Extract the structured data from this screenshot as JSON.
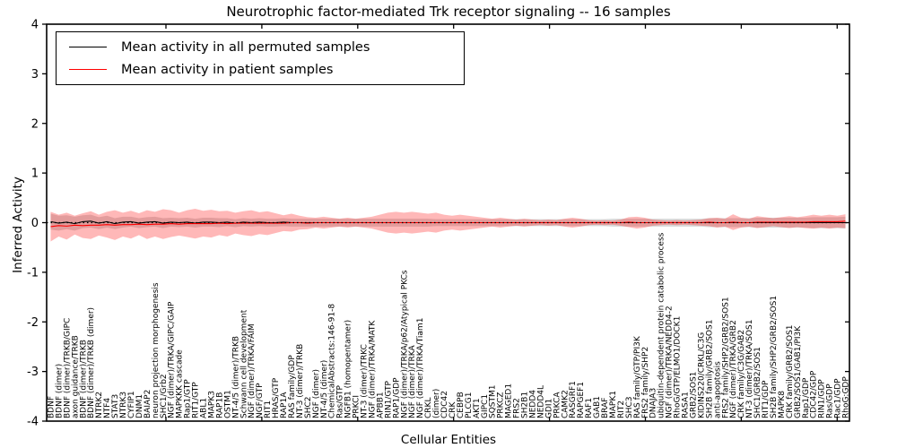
{
  "title": "Neurotrophic factor-mediated Trk receptor signaling -- 16 samples",
  "axes": {
    "xlabel": "Cellular Entities",
    "ylabel": "Inferred Activity",
    "ymin": -4,
    "ymax": 4,
    "yticks": [
      -4,
      -3,
      -2,
      -1,
      0,
      1,
      2,
      3,
      4
    ]
  },
  "legend": {
    "items": [
      {
        "label": "Mean activity in all permuted samples",
        "color": "#000000"
      },
      {
        "label": "Mean activity in patient samples",
        "color": "#ff0000"
      }
    ]
  },
  "colors": {
    "patient_line": "#ff0000",
    "permuted_line": "#000000",
    "patient_band_fill": "#ff0000",
    "patient_band_opacity": 0.28,
    "permuted_band_fill": "#999999",
    "permuted_band_opacity": 0.38,
    "zero_line": "#000000",
    "frame": "#000000"
  },
  "chart_data": {
    "type": "line",
    "title": "Neurotrophic factor-mediated Trk receptor signaling -- 16 samples",
    "xlabel": "Cellular Entities",
    "ylabel": "Inferred Activity",
    "ylim": [
      -4,
      4
    ],
    "grid": false,
    "legend_position": "upper left",
    "zero_line": {
      "style": "dotted",
      "color": "#000000",
      "y": 0
    },
    "x_categories": [
      "BDNF",
      "BDNF (dimer)",
      "BDNF (dimer)/TRKB/GIPC",
      "axon guidance/TRKB",
      "BDNF (dimer)/TRKB",
      "BDNF (dimer)/TRKB (dimer)",
      "NTRK2",
      "NTF4",
      "STAT3",
      "NTRK3",
      "CYFIP1",
      "DNM1",
      "BAIAP2",
      "neuron projection morphogenesis",
      "SHC1/Grb2",
      "NGF (dimer)/TRKA/GIPC/GAIP",
      "MAPKKK cascade",
      "Rap1/GTP",
      "RIT1/GTP",
      "ABL1",
      "MAPK3",
      "RAP1B",
      "OSTM1",
      "NT-4/5 (dimer)/TRKB",
      "Schwann cell development",
      "NGF (dimer)/TRKA/FAIM",
      "NGF/GTP",
      "RIT1",
      "HRAS/GTP",
      "RAP1A",
      "RAS family/GDP",
      "NT-3 (dimer)/TRKB",
      "SHC2",
      "NGF (dimer)",
      "NT-4/5 (dimer)",
      "ChemicalAbstracts:146-91-8",
      "Ras/GTP",
      "NGFB1 (homopentamer)",
      "PRKCI",
      "NT-3 (dimer)/TRKC",
      "NGF (dimer)/TRKA/MATK",
      "APBB1",
      "RIN1/GTP",
      "RAP1/GDP",
      "NGF (dimer)/TRKA/p62/Atypical PKCs",
      "NGF (dimer)/TRKA",
      "NGF (dimer)/TRKA/Tiam1",
      "CRKL",
      "(dimer)",
      "CDC42",
      "CRK",
      "CEBPB",
      "PLCG1",
      "AKT1",
      "GIPC1",
      "SQSTM1",
      "PRKCZ",
      "MAGED1",
      "FRS2",
      "SH2B1",
      "NEDD4",
      "NEDD4L",
      "GDI1",
      "PRKCA",
      "CAMK2",
      "RASGRF1",
      "RAPGEF1",
      "RAF1",
      "GAB1",
      "BRAF",
      "MAPK1",
      "RIT2",
      "SHC3",
      "RAS family/GTP/PI3K",
      "FRS2 family/SHP2",
      "DNAJA3",
      "ubiquitin-dependent protein catabolic process",
      "NGF (dimer)/TRKA/NEDD4-2",
      "RhoG/GTP/ELMO1/DOCK1",
      "RASA1",
      "GRB2/SOS1",
      "KIDINS220/CRKL/C3G",
      "SH2B family/GRB2/SOS1",
      "anti-apoptosis",
      "FRS2 family/SHP2/GRB2/SOS1",
      "NGF (dimer)/TRKA/GRB2",
      "CRK family/C3G/GAB2",
      "NT-3 (dimer)/TRKA/SOS1",
      "SHC1/GRB2/SOS1",
      "RIT1/GDP",
      "SH2B family/SHP2/GRB2/SOS1",
      "MAPK8",
      "CRK family/GRB2/SOS1",
      "GRB2/SOS1/GAB1/PI3K",
      "Rap1/GDP",
      "CDC42/GDP",
      "RIN1/GDP",
      "Ras/GDP",
      "Rac1/GDP",
      "RhoG:GDP"
    ],
    "series": [
      {
        "name": "Mean activity in all permuted samples",
        "color": "#000000",
        "values": [
          0.02,
          -0.01,
          0.01,
          -0.02,
          0.02,
          0.03,
          -0.01,
          0.02,
          -0.02,
          0.01,
          0.02,
          -0.01,
          0.01,
          0.02,
          -0.01,
          0.01,
          0.0,
          0.01,
          -0.01,
          0.01,
          0.01,
          0.0,
          0.01,
          -0.01,
          0.01,
          0.0,
          0.01,
          0.0,
          0.0,
          0.01,
          0.0,
          0.0,
          0.0,
          0.0,
          0.0,
          0.0,
          0.0,
          0.0,
          0.0,
          0.0,
          0.0,
          0.0,
          0.0,
          0.0,
          0.0,
          0.0,
          0.0,
          0.0,
          0.0,
          0.0,
          0.0,
          0.0,
          0.0,
          0.0,
          0.0,
          0.0,
          0.0,
          0.0,
          0.0,
          0.0,
          0.0,
          0.0,
          0.0,
          0.0,
          0.0,
          0.0,
          0.0,
          0.0,
          0.0,
          0.0,
          0.0,
          0.0,
          0.0,
          0.0,
          0.0,
          0.0,
          0.0,
          0.0,
          0.0,
          0.0,
          0.0,
          0.0,
          0.0,
          0.0,
          0.0,
          0.0,
          0.0,
          0.0,
          0.0,
          0.0,
          0.0,
          0.0,
          0.0,
          0.0,
          0.0,
          0.0,
          0.0,
          0.0,
          0.0,
          0.0
        ]
      },
      {
        "name": "Mean activity in patient samples",
        "color": "#ff0000",
        "values": [
          -0.08,
          -0.06,
          -0.07,
          -0.05,
          -0.06,
          -0.05,
          -0.05,
          -0.04,
          -0.05,
          -0.04,
          -0.04,
          -0.03,
          -0.04,
          -0.03,
          -0.03,
          -0.02,
          -0.03,
          -0.02,
          -0.02,
          -0.02,
          -0.02,
          -0.01,
          -0.02,
          -0.01,
          -0.01,
          -0.01,
          -0.01,
          -0.01,
          -0.01,
          -0.01,
          0.0,
          0.0,
          -0.01,
          0.0,
          0.0,
          0.0,
          0.0,
          0.0,
          0.0,
          0.0,
          0.0,
          0.0,
          0.0,
          0.0,
          0.0,
          0.0,
          0.0,
          0.0,
          0.0,
          0.0,
          0.0,
          0.0,
          0.0,
          0.0,
          0.0,
          0.0,
          0.0,
          0.0,
          0.0,
          0.0,
          0.0,
          0.0,
          0.0,
          0.0,
          0.0,
          0.0,
          0.0,
          0.0,
          0.0,
          0.0,
          0.0,
          0.0,
          0.01,
          0.0,
          0.0,
          0.0,
          0.0,
          0.0,
          0.0,
          0.0,
          0.0,
          0.0,
          0.01,
          0.0,
          0.0,
          0.01,
          0.0,
          0.0,
          0.01,
          0.01,
          0.01,
          0.01,
          0.01,
          0.01,
          0.01,
          0.02,
          0.02,
          0.02,
          0.02,
          0.03
        ]
      }
    ],
    "bands": [
      {
        "name": "permuted samples range",
        "color": "#999999",
        "center_series": 0,
        "half_widths": [
          0.16,
          0.15,
          0.14,
          0.14,
          0.13,
          0.13,
          0.12,
          0.12,
          0.11,
          0.11,
          0.1,
          0.1,
          0.1,
          0.1,
          0.1,
          0.09,
          0.09,
          0.09,
          0.09,
          0.09,
          0.09,
          0.09,
          0.08,
          0.08,
          0.08,
          0.08,
          0.08,
          0.08,
          0.08,
          0.08,
          0.08,
          0.08,
          0.08,
          0.08,
          0.08,
          0.08,
          0.08,
          0.08,
          0.08,
          0.08,
          0.08,
          0.08,
          0.08,
          0.08,
          0.08,
          0.08,
          0.08,
          0.08,
          0.07,
          0.07,
          0.07,
          0.07,
          0.07,
          0.07,
          0.07,
          0.07,
          0.07,
          0.07,
          0.07,
          0.07,
          0.07,
          0.07,
          0.07,
          0.07,
          0.07,
          0.07,
          0.07,
          0.07,
          0.07,
          0.07,
          0.08,
          0.08,
          0.08,
          0.08,
          0.08,
          0.08,
          0.08,
          0.08,
          0.08,
          0.08,
          0.08,
          0.08,
          0.09,
          0.09,
          0.09,
          0.09,
          0.09,
          0.09,
          0.1,
          0.1,
          0.1,
          0.1,
          0.1,
          0.1,
          0.1,
          0.11,
          0.11,
          0.11,
          0.11,
          0.12
        ]
      },
      {
        "name": "patient samples range",
        "color": "#ff0000",
        "center_series": 1,
        "half_widths": [
          0.3,
          0.22,
          0.27,
          0.19,
          0.25,
          0.28,
          0.21,
          0.26,
          0.3,
          0.24,
          0.28,
          0.22,
          0.29,
          0.25,
          0.3,
          0.27,
          0.23,
          0.27,
          0.3,
          0.26,
          0.28,
          0.24,
          0.26,
          0.21,
          0.24,
          0.26,
          0.22,
          0.24,
          0.2,
          0.16,
          0.18,
          0.14,
          0.12,
          0.1,
          0.12,
          0.1,
          0.08,
          0.1,
          0.08,
          0.1,
          0.12,
          0.16,
          0.2,
          0.22,
          0.2,
          0.22,
          0.2,
          0.18,
          0.2,
          0.16,
          0.14,
          0.16,
          0.14,
          0.12,
          0.1,
          0.08,
          0.1,
          0.08,
          0.06,
          0.08,
          0.06,
          0.05,
          0.06,
          0.05,
          0.08,
          0.1,
          0.08,
          0.05,
          0.04,
          0.05,
          0.04,
          0.06,
          0.1,
          0.12,
          0.1,
          0.06,
          0.05,
          0.04,
          0.05,
          0.04,
          0.05,
          0.06,
          0.08,
          0.1,
          0.08,
          0.16,
          0.1,
          0.08,
          0.12,
          0.1,
          0.08,
          0.1,
          0.12,
          0.1,
          0.12,
          0.14,
          0.12,
          0.14,
          0.12,
          0.14
        ]
      }
    ]
  }
}
